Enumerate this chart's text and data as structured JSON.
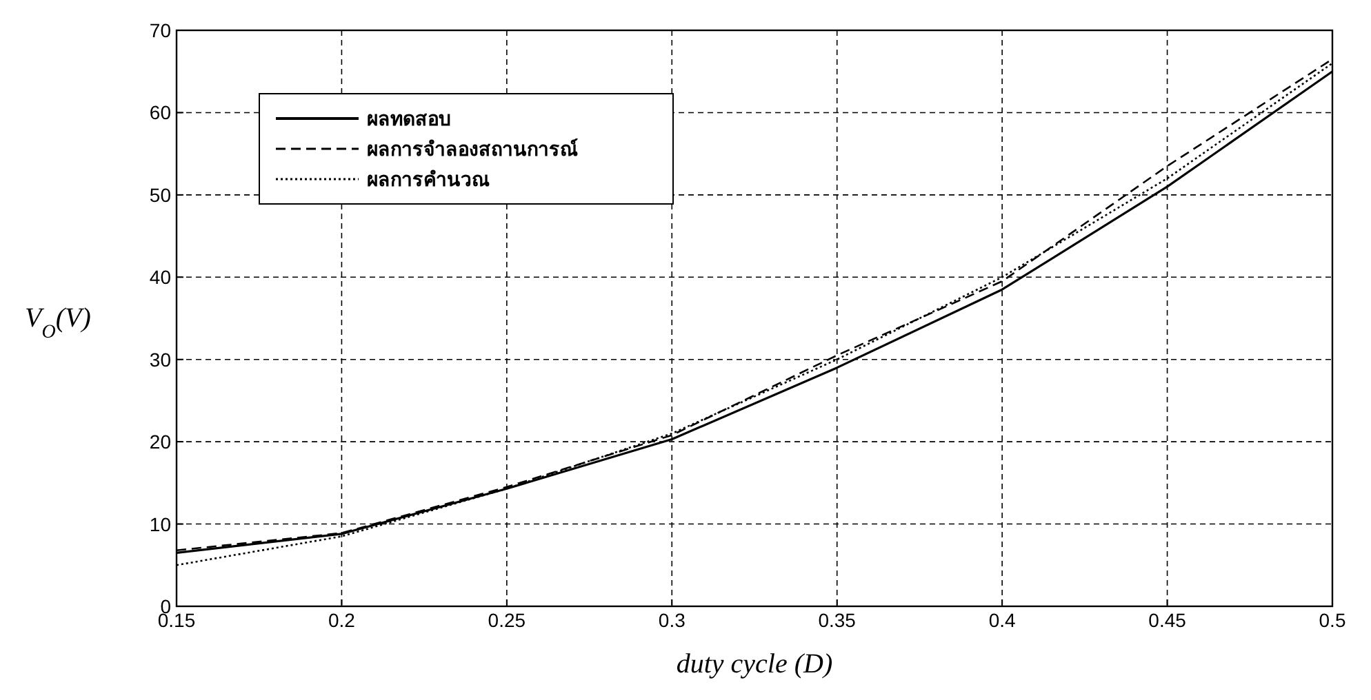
{
  "chart_data": {
    "type": "line",
    "xlabel": "duty cycle (D)",
    "ylabel": "V$_{O}$(V)",
    "x": [
      0.15,
      0.2,
      0.25,
      0.3,
      0.35,
      0.4,
      0.45,
      0.5
    ],
    "series": [
      {
        "name": "ผลทดสอบ",
        "color": "#000000",
        "line_style": "solid",
        "values": [
          6.5,
          8.8,
          14.3,
          20.3,
          29,
          38.5,
          51,
          65
        ]
      },
      {
        "name": "ผลการจำลองสถานการณ์",
        "color": "#000000",
        "line_style": "dashed",
        "values": [
          6.8,
          8.9,
          14.5,
          20.8,
          30.5,
          39.5,
          53.5,
          66.5
        ]
      },
      {
        "name": "ผลการคำนวณ",
        "color": "#000000",
        "line_style": "dotted",
        "values": [
          5,
          8.5,
          14.3,
          21,
          30,
          40,
          52,
          66
        ]
      }
    ],
    "xlim": [
      0.15,
      0.5
    ],
    "xticks": [
      0.15,
      0.2,
      0.25,
      0.3,
      0.35,
      0.4,
      0.45,
      0.5
    ],
    "ylim": [
      0,
      70
    ],
    "yticks": [
      0,
      10,
      20,
      30,
      40,
      50,
      60,
      70
    ],
    "grid": true,
    "legend": "top left",
    "marker": "none"
  }
}
